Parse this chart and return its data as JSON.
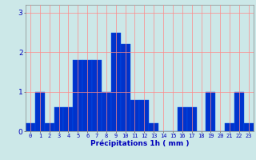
{
  "values": [
    0.2,
    1.0,
    0.2,
    0.6,
    0.6,
    1.8,
    1.8,
    1.8,
    1.0,
    2.5,
    2.2,
    0.8,
    0.8,
    0.2,
    0.0,
    0.0,
    0.6,
    0.6,
    0.0,
    1.0,
    0.0,
    0.2,
    1.0,
    0.2
  ],
  "categories": [
    "0",
    "1",
    "2",
    "3",
    "4",
    "5",
    "6",
    "7",
    "8",
    "9",
    "10",
    "11",
    "12",
    "13",
    "14",
    "15",
    "16",
    "17",
    "18",
    "19",
    "20",
    "21",
    "22",
    "23"
  ],
  "bar_color": "#0033cc",
  "bar_edge_color": "#0055ee",
  "background_color": "#cce8e8",
  "grid_color": "#ff8888",
  "xlabel": "Précipitations 1h ( mm )",
  "xlabel_color": "#0000bb",
  "tick_color": "#0000bb",
  "ylim": [
    0,
    3.2
  ],
  "yticks": [
    0,
    1,
    2,
    3
  ]
}
